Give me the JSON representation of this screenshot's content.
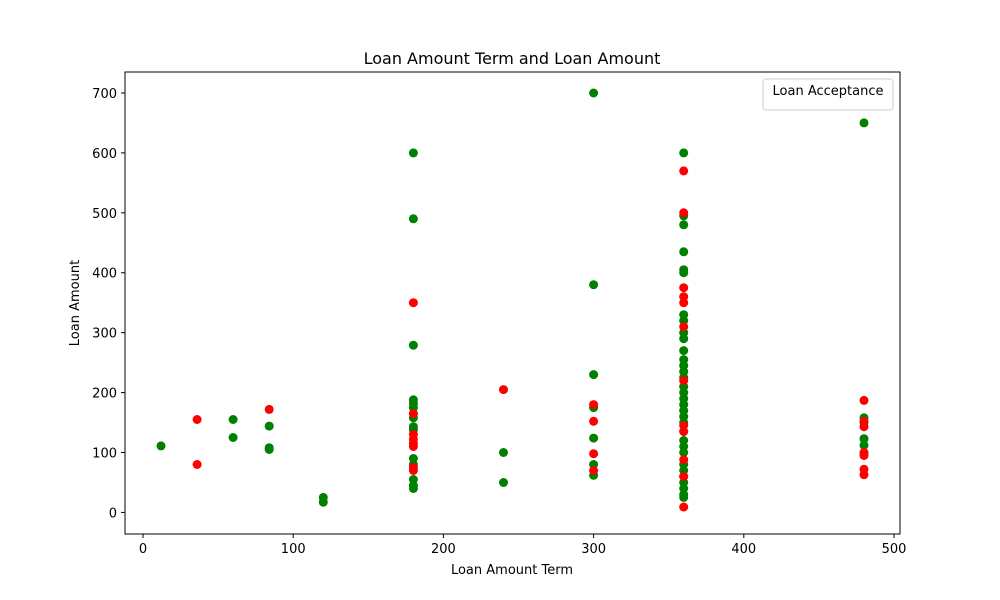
{
  "chart_data": {
    "type": "scatter",
    "title": "Loan Amount Term and Loan Amount",
    "xlabel": "Loan Amount Term",
    "ylabel": "Loan Amount",
    "xlim": [
      -12,
      504
    ],
    "ylim": [
      -36,
      735
    ],
    "xticks": [
      0,
      100,
      200,
      300,
      400,
      500
    ],
    "yticks": [
      0,
      100,
      200,
      300,
      400,
      500,
      600,
      700
    ],
    "grid": false,
    "legend": {
      "title": "Loan Acceptance",
      "placement": "top-right",
      "entries": []
    },
    "colors": {
      "approved": "#008000",
      "rejected": "#ff0000"
    },
    "series": [
      {
        "color": "#008000",
        "x": [
          12,
          60,
          60,
          84,
          84,
          84,
          120,
          120,
          180,
          180,
          180,
          180,
          180,
          180,
          180,
          180,
          180,
          180,
          180,
          180,
          180,
          180,
          240,
          240,
          300,
          300,
          300,
          300,
          300,
          300,
          300,
          360,
          360,
          360,
          360,
          360,
          360,
          360,
          360,
          360,
          360,
          360,
          360,
          360,
          360,
          360,
          360,
          360,
          360,
          360,
          360,
          360,
          360,
          360,
          360,
          360,
          360,
          360,
          360,
          360,
          360,
          360,
          360,
          360,
          480,
          480,
          480,
          480,
          480
        ],
        "y": [
          111,
          155,
          125,
          144,
          108,
          105,
          25,
          17,
          600,
          490,
          279,
          188,
          182,
          175,
          158,
          143,
          138,
          90,
          80,
          55,
          45,
          40,
          100,
          50,
          700,
          380,
          230,
          175,
          124,
          80,
          62,
          600,
          495,
          480,
          435,
          405,
          400,
          330,
          320,
          300,
          290,
          270,
          255,
          245,
          235,
          225,
          210,
          200,
          190,
          180,
          170,
          160,
          150,
          135,
          120,
          110,
          100,
          80,
          70,
          60,
          50,
          40,
          30,
          25,
          650,
          158,
          150,
          123,
          112
        ]
      },
      {
        "color": "#ff0000",
        "x": [
          36,
          36,
          84,
          180,
          180,
          180,
          180,
          180,
          180,
          180,
          180,
          240,
          300,
          300,
          300,
          300,
          360,
          360,
          360,
          360,
          360,
          360,
          360,
          360,
          360,
          360,
          360,
          360,
          480,
          480,
          480,
          480,
          480,
          480,
          480
        ],
        "y": [
          155,
          80,
          172,
          350,
          165,
          130,
          122,
          115,
          110,
          75,
          70,
          205,
          180,
          152,
          98,
          70,
          570,
          500,
          375,
          360,
          350,
          310,
          220,
          145,
          135,
          88,
          60,
          9,
          187,
          152,
          143,
          100,
          95,
          72,
          63
        ]
      }
    ]
  }
}
